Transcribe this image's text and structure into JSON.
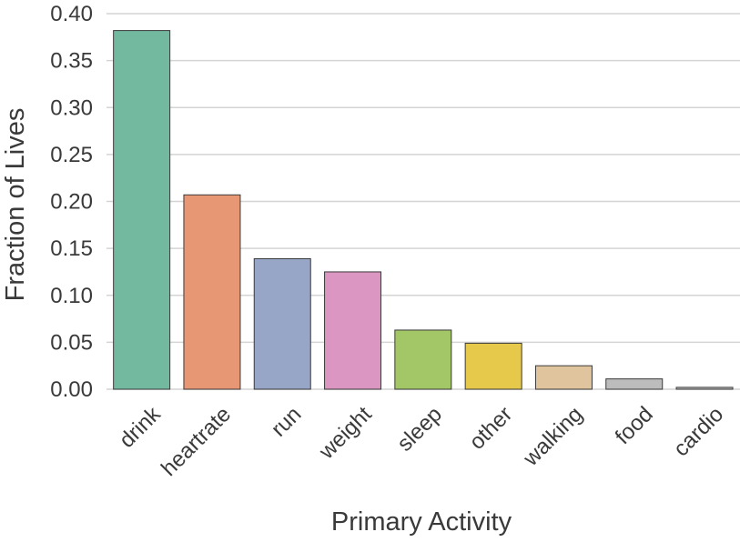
{
  "chart_data": {
    "type": "bar",
    "title": "",
    "xlabel": "Primary Activity",
    "ylabel": "Fraction of Lives",
    "categories": [
      "drink",
      "heartrate",
      "run",
      "weight",
      "sleep",
      "other",
      "walking",
      "food",
      "cardio"
    ],
    "values": [
      0.382,
      0.207,
      0.139,
      0.125,
      0.063,
      0.049,
      0.025,
      0.011,
      0.002
    ],
    "colors": [
      "#72b9a0",
      "#e89775",
      "#97a6c6",
      "#db96c2",
      "#a3c767",
      "#e6c84b",
      "#e0c49d",
      "#bcbcbc",
      "#bcbcbc"
    ],
    "yticks": [
      "0.00",
      "0.05",
      "0.10",
      "0.15",
      "0.20",
      "0.25",
      "0.30",
      "0.35",
      "0.40"
    ],
    "ylim": [
      0,
      0.4
    ],
    "grid": true,
    "legend": "none"
  }
}
